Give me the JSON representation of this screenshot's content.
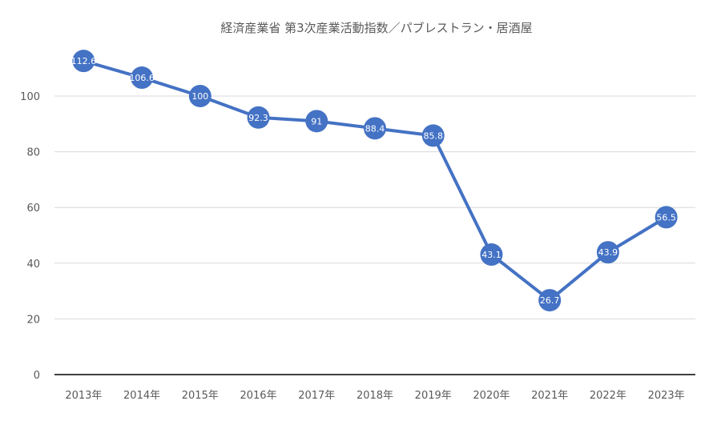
{
  "chart_data": {
    "type": "line",
    "title": "経済産業省 第3次産業活動指数／パブレストラン・居酒屋",
    "categories": [
      "2013年",
      "2014年",
      "2015年",
      "2016年",
      "2017年",
      "2018年",
      "2019年",
      "2020年",
      "2021年",
      "2022年",
      "2023年"
    ],
    "series": [
      {
        "name": "パブレストラン・居酒屋",
        "values": [
          112.6,
          106.6,
          100,
          92.3,
          91,
          88.4,
          85.8,
          43.1,
          26.7,
          43.9,
          56.5
        ],
        "labels": [
          "112.6",
          "106.6",
          "100",
          "92.3",
          "91",
          "88.4",
          "85.8",
          "43.1",
          "26.7",
          "43.9",
          "56.5"
        ],
        "color": "#4472C4"
      }
    ],
    "yticks": [
      "0",
      "20",
      "40",
      "60",
      "80",
      "100"
    ],
    "ytick_values": [
      0,
      20,
      40,
      60,
      80,
      100
    ],
    "ylim": [
      0,
      120
    ],
    "xlabel": "",
    "ylabel": "",
    "grid": true,
    "legend": "none"
  }
}
